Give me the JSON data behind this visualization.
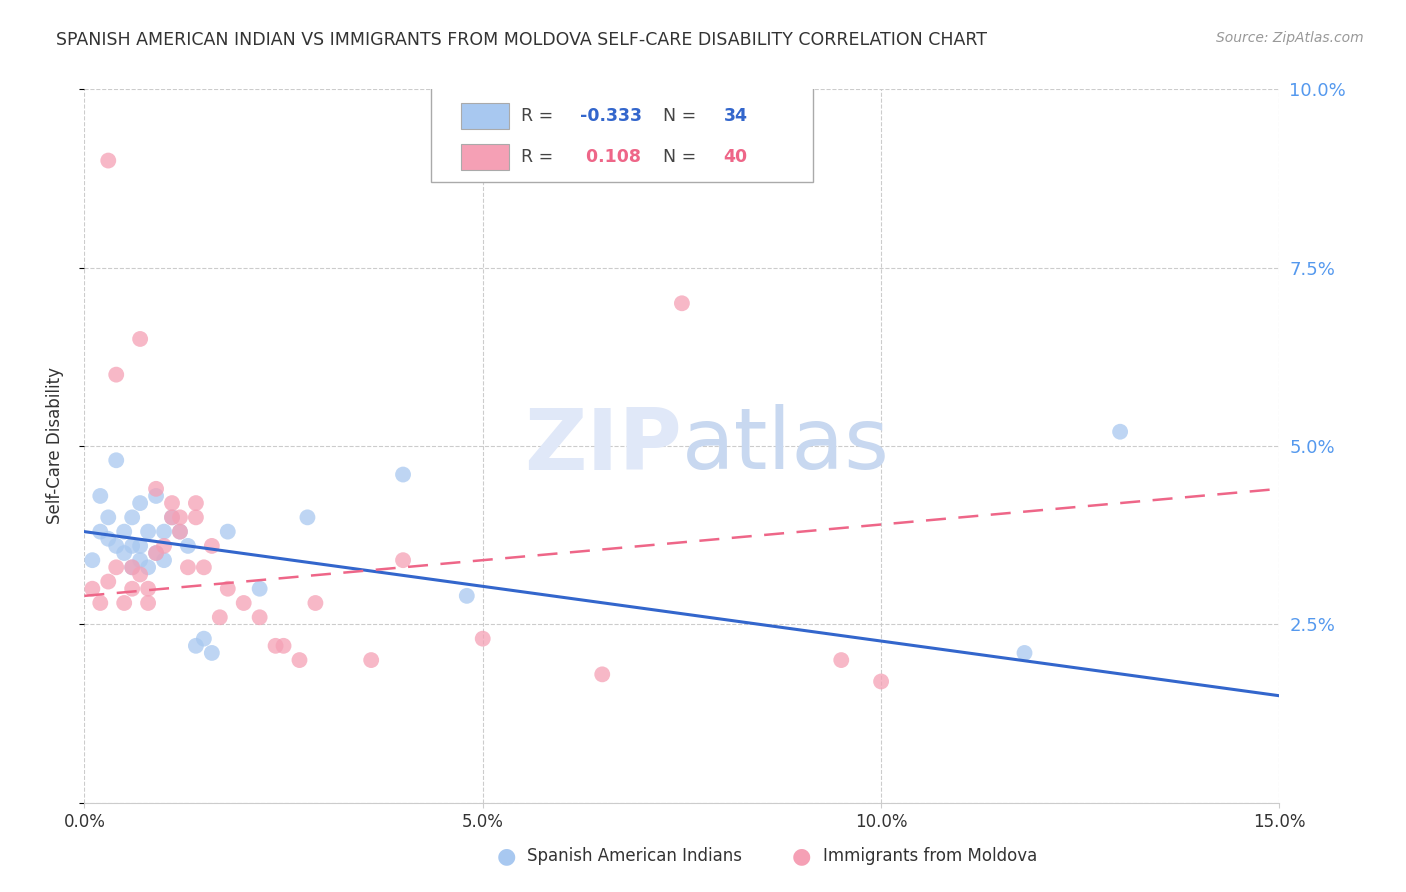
{
  "title": "SPANISH AMERICAN INDIAN VS IMMIGRANTS FROM MOLDOVA SELF-CARE DISABILITY CORRELATION CHART",
  "source": "Source: ZipAtlas.com",
  "ylabel": "Self-Care Disability",
  "xlim": [
    0.0,
    0.15
  ],
  "ylim": [
    0.0,
    0.1
  ],
  "yticks": [
    0.0,
    0.025,
    0.05,
    0.075,
    0.1
  ],
  "xticks": [
    0.0,
    0.05,
    0.1,
    0.15
  ],
  "xtick_labels": [
    "0.0%",
    "5.0%",
    "10.0%",
    "15.0%"
  ],
  "ytick_labels": [
    "",
    "2.5%",
    "5.0%",
    "7.5%",
    "10.0%"
  ],
  "blue_color": "#A8C8F0",
  "pink_color": "#F5A0B5",
  "blue_line_color": "#3366CC",
  "pink_line_color": "#EE6688",
  "blue_label": "Spanish American Indians",
  "pink_label": "Immigrants from Moldova",
  "R_blue": -0.333,
  "N_blue": 34,
  "R_pink": 0.108,
  "N_pink": 40,
  "blue_scatter_x": [
    0.001,
    0.002,
    0.002,
    0.003,
    0.003,
    0.004,
    0.004,
    0.005,
    0.005,
    0.006,
    0.006,
    0.006,
    0.007,
    0.007,
    0.007,
    0.008,
    0.008,
    0.009,
    0.009,
    0.01,
    0.01,
    0.011,
    0.012,
    0.013,
    0.014,
    0.015,
    0.016,
    0.018,
    0.022,
    0.028,
    0.04,
    0.048,
    0.118,
    0.13
  ],
  "blue_scatter_y": [
    0.034,
    0.038,
    0.043,
    0.037,
    0.04,
    0.036,
    0.048,
    0.035,
    0.038,
    0.033,
    0.036,
    0.04,
    0.034,
    0.036,
    0.042,
    0.033,
    0.038,
    0.035,
    0.043,
    0.034,
    0.038,
    0.04,
    0.038,
    0.036,
    0.022,
    0.023,
    0.021,
    0.038,
    0.03,
    0.04,
    0.046,
    0.029,
    0.021,
    0.052
  ],
  "pink_scatter_x": [
    0.001,
    0.002,
    0.003,
    0.003,
    0.004,
    0.004,
    0.005,
    0.006,
    0.006,
    0.007,
    0.007,
    0.008,
    0.008,
    0.009,
    0.009,
    0.01,
    0.011,
    0.011,
    0.012,
    0.012,
    0.013,
    0.014,
    0.014,
    0.015,
    0.016,
    0.017,
    0.018,
    0.02,
    0.022,
    0.024,
    0.025,
    0.027,
    0.029,
    0.036,
    0.04,
    0.05,
    0.065,
    0.075,
    0.1,
    0.095
  ],
  "pink_scatter_y": [
    0.03,
    0.028,
    0.031,
    0.09,
    0.033,
    0.06,
    0.028,
    0.033,
    0.03,
    0.032,
    0.065,
    0.03,
    0.028,
    0.035,
    0.044,
    0.036,
    0.04,
    0.042,
    0.04,
    0.038,
    0.033,
    0.042,
    0.04,
    0.033,
    0.036,
    0.026,
    0.03,
    0.028,
    0.026,
    0.022,
    0.022,
    0.02,
    0.028,
    0.02,
    0.034,
    0.023,
    0.018,
    0.07,
    0.017,
    0.02
  ],
  "blue_trend_x": [
    0.0,
    0.15
  ],
  "blue_trend_y": [
    0.038,
    0.015
  ],
  "pink_trend_x": [
    0.0,
    0.15
  ],
  "pink_trend_y": [
    0.029,
    0.044
  ],
  "background_color": "#ffffff",
  "grid_color": "#cccccc",
  "title_color": "#333333",
  "right_tick_color": "#5599EE",
  "source_color": "#999999",
  "watermark_color": "#E0E8F8"
}
